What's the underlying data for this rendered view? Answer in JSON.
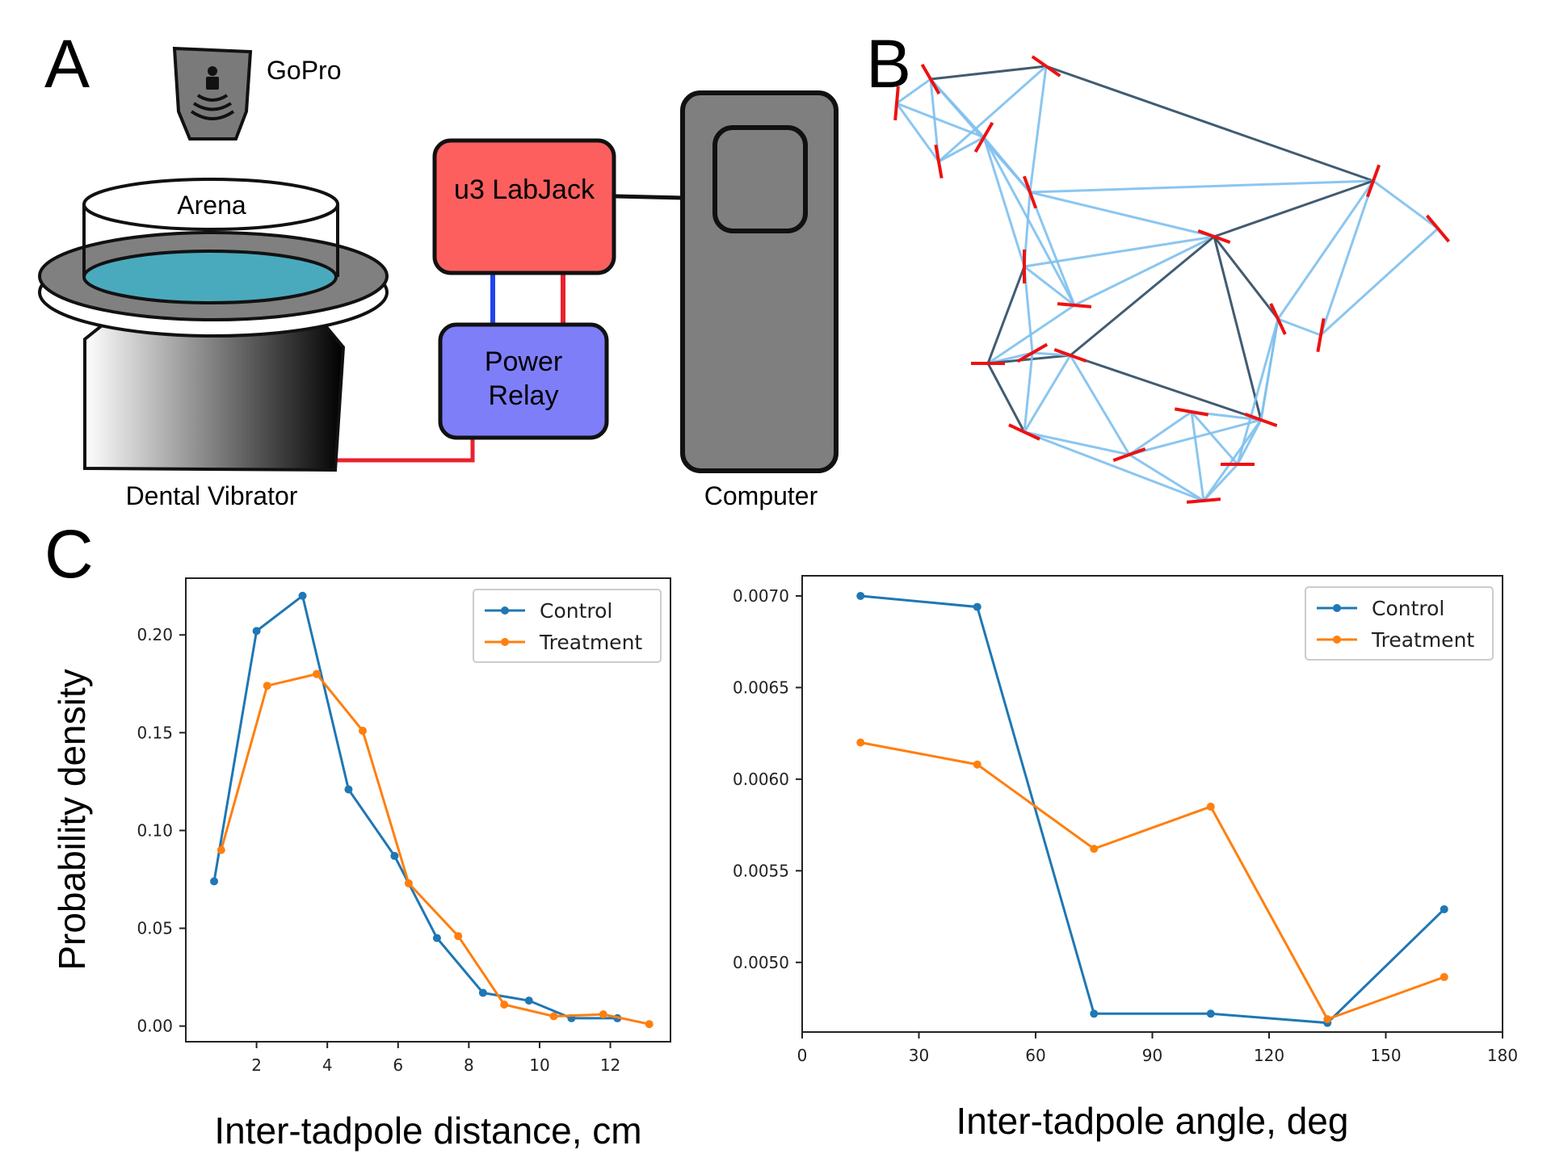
{
  "panels": {
    "a": "A",
    "b": "B",
    "c": "C"
  },
  "setup": {
    "gopro": "GoPro",
    "arena": "Arena",
    "vibrator": "Dental Vibrator",
    "labjack": "u3 LabJack",
    "relay_line1": "Power",
    "relay_line2": "Relay",
    "computer": "Computer"
  },
  "colors": {
    "labjack": "#fd5f5f",
    "relay": "#7e7ef9",
    "computer": "#7f7f7f",
    "water": "#4aaabd",
    "wire_red": "#e8222e",
    "wire_blue": "#2244ee",
    "control": "#1f77b4",
    "treatment": "#ff7f0e",
    "tri_light": "#7ec0ee",
    "tri_dark": "#111111",
    "heading": "#ee1111"
  },
  "ylabel_shared": "Probability density",
  "chart_data": [
    {
      "type": "line",
      "xlabel": "Inter-tadpole distance, cm",
      "ylabel": "Probability density",
      "xlim": [
        0.0,
        13.7
      ],
      "ylim": [
        -0.008,
        0.229
      ],
      "xticks": [
        2,
        4,
        6,
        8,
        10,
        12
      ],
      "yticks": [
        0.0,
        0.05,
        0.1,
        0.15,
        0.2
      ],
      "ytick_labels": [
        "0.00",
        "0.05",
        "0.10",
        "0.15",
        "0.20"
      ],
      "legend_position": "upper right",
      "series": [
        {
          "name": "Control",
          "x": [
            0.8,
            2.0,
            3.3,
            4.6,
            5.9,
            7.1,
            8.4,
            9.7,
            10.9,
            12.2
          ],
          "y": [
            0.074,
            0.202,
            0.22,
            0.121,
            0.087,
            0.045,
            0.017,
            0.013,
            0.004,
            0.004
          ]
        },
        {
          "name": "Treatment",
          "x": [
            1.0,
            2.3,
            3.7,
            5.0,
            6.3,
            7.7,
            9.0,
            10.4,
            11.8,
            13.1
          ],
          "y": [
            0.09,
            0.174,
            0.18,
            0.151,
            0.073,
            0.046,
            0.011,
            0.005,
            0.006,
            0.001
          ]
        }
      ]
    },
    {
      "type": "line",
      "xlabel": "Inter-tadpole angle, deg",
      "ylabel": "",
      "xlim": [
        0,
        180
      ],
      "ylim": [
        0.00462,
        0.00711
      ],
      "xticks": [
        0,
        30,
        60,
        90,
        120,
        150,
        180
      ],
      "yticks": [
        0.005,
        0.0055,
        0.006,
        0.0065,
        0.007
      ],
      "ytick_labels": [
        "0.0050",
        "0.0055",
        "0.0060",
        "0.0065",
        "0.0070"
      ],
      "legend_position": "upper right",
      "series": [
        {
          "name": "Control",
          "x": [
            15,
            45,
            75,
            105,
            135,
            165
          ],
          "y": [
            0.007,
            0.00694,
            0.00472,
            0.00472,
            0.00467,
            0.00529
          ]
        },
        {
          "name": "Treatment",
          "x": [
            15,
            45,
            75,
            105,
            135,
            165
          ],
          "y": [
            0.0062,
            0.00608,
            0.00562,
            0.00585,
            0.00469,
            0.00492
          ]
        }
      ]
    }
  ]
}
